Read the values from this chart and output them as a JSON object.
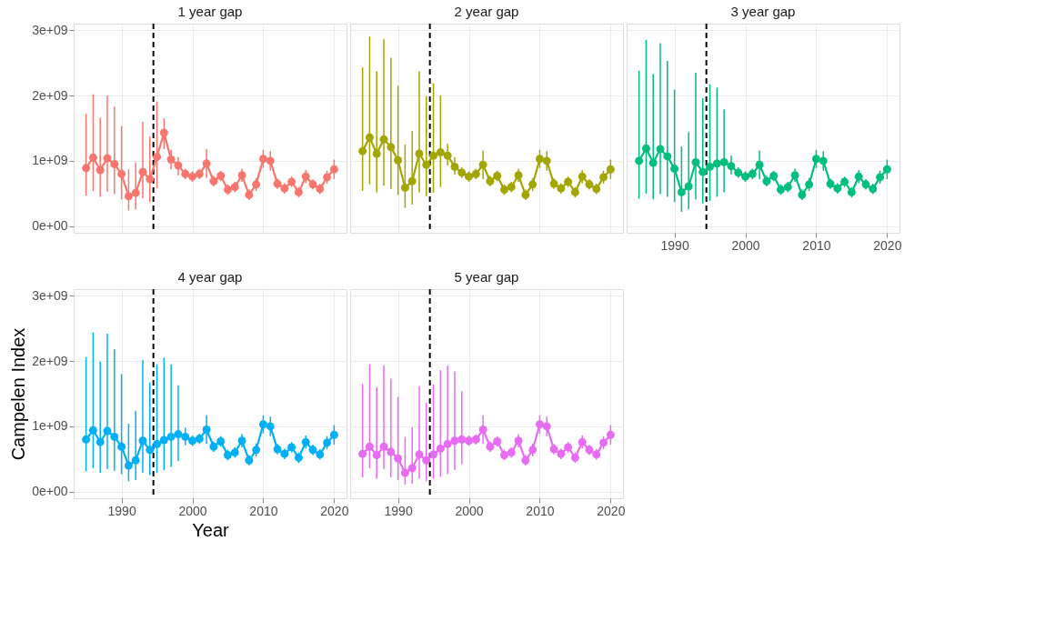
{
  "chart_data": [
    {
      "type": "line",
      "title": "1 year gap",
      "x": [
        1985,
        1986,
        1987,
        1988,
        1989,
        1990,
        1991,
        1992,
        1993,
        1994,
        1995,
        1996,
        1997,
        1998,
        1999,
        2000,
        2001,
        2002,
        2003,
        2004,
        2005,
        2006,
        2007,
        2008,
        2009,
        2010,
        2011,
        2012,
        2013,
        2014,
        2015,
        2016,
        2017,
        2018,
        2019,
        2020
      ],
      "xlim": [
        1983.25,
        2021.75
      ],
      "xticks": [
        1990,
        2000,
        2010,
        2020
      ],
      "ylim": [
        -100000000.0,
        3100000000.0
      ],
      "yticks": [
        {
          "value": 0,
          "label": "0e+00"
        },
        {
          "value": 1000000000.0,
          "label": "1e+09"
        },
        {
          "value": 2000000000.0,
          "label": "2e+09"
        },
        {
          "value": 3000000000.0,
          "label": "3e+09"
        }
      ],
      "tick_labels": "y",
      "grid": true,
      "legend": false,
      "marker": "circle",
      "line_style": "solid",
      "ref_lines": [
        {
          "axis": "x",
          "value": 1994.5,
          "color": "#000000",
          "line_style": "dashed"
        }
      ],
      "series": [
        {
          "color": "#f8766d",
          "values": [
            890000000.0,
            1050000000.0,
            860000000.0,
            1040000000.0,
            950000000.0,
            800000000.0,
            460000000.0,
            510000000.0,
            830000000.0,
            720000000.0,
            1060000000.0,
            1430000000.0,
            1020000000.0,
            930000000.0,
            800000000.0,
            760000000.0,
            800000000.0,
            960000000.0,
            690000000.0,
            770000000.0,
            560000000.0,
            600000000.0,
            780000000.0,
            480000000.0,
            640000000.0,
            1030000000.0,
            1000000000.0,
            650000000.0,
            580000000.0,
            680000000.0,
            520000000.0,
            760000000.0,
            640000000.0,
            570000000.0,
            750000000.0,
            870000000.0
          ],
          "errors": [
            [
              470000000.0,
              1720000000.0
            ],
            [
              540000000.0,
              2020000000.0
            ],
            [
              450000000.0,
              1660000000.0
            ],
            [
              530000000.0,
              2000000000.0
            ],
            [
              490000000.0,
              1830000000.0
            ],
            [
              410000000.0,
              1530000000.0
            ],
            [
              240000000.0,
              870000000.0
            ],
            [
              260000000.0,
              980000000.0
            ],
            [
              430000000.0,
              1600000000.0
            ],
            [
              370000000.0,
              1370000000.0
            ],
            [
              580000000.0,
              1910000000.0
            ],
            [
              1180000000.0,
              1650000000.0
            ],
            [
              870000000.0,
              1170000000.0
            ],
            [
              780000000.0,
              1060000000.0
            ],
            80000000.0,
            80000000.0,
            80000000.0,
            220000000.0,
            80000000.0,
            80000000.0,
            80000000.0,
            80000000.0,
            100000000.0,
            80000000.0,
            100000000.0,
            140000000.0,
            150000000.0,
            80000000.0,
            80000000.0,
            80000000.0,
            80000000.0,
            100000000.0,
            80000000.0,
            80000000.0,
            100000000.0,
            150000000.0
          ]
        }
      ]
    },
    {
      "type": "line",
      "title": "2 year gap",
      "x": [
        1985,
        1986,
        1987,
        1988,
        1989,
        1990,
        1991,
        1992,
        1993,
        1994,
        1995,
        1996,
        1997,
        1998,
        1999,
        2000,
        2001,
        2002,
        2003,
        2004,
        2005,
        2006,
        2007,
        2008,
        2009,
        2010,
        2011,
        2012,
        2013,
        2014,
        2015,
        2016,
        2017,
        2018,
        2019,
        2020
      ],
      "xlim": [
        1983.25,
        2021.75
      ],
      "xticks": [
        1990,
        2000,
        2010,
        2020
      ],
      "ylim": [
        -100000000.0,
        3100000000.0
      ],
      "yticks": [
        0,
        1000000000.0,
        2000000000.0,
        3000000000.0
      ],
      "tick_labels": false,
      "grid": true,
      "legend": false,
      "marker": "circle",
      "line_style": "solid",
      "ref_lines": [
        {
          "axis": "x",
          "value": 1994.5,
          "color": "#000000",
          "line_style": "dashed"
        }
      ],
      "series": [
        {
          "color": "#a3a500",
          "values": [
            1150000000.0,
            1360000000.0,
            1110000000.0,
            1330000000.0,
            1210000000.0,
            1010000000.0,
            590000000.0,
            690000000.0,
            1110000000.0,
            940000000.0,
            1080000000.0,
            1130000000.0,
            1080000000.0,
            910000000.0,
            820000000.0,
            760000000.0,
            800000000.0,
            940000000.0,
            690000000.0,
            770000000.0,
            560000000.0,
            600000000.0,
            780000000.0,
            480000000.0,
            640000000.0,
            1030000000.0,
            1000000000.0,
            650000000.0,
            580000000.0,
            680000000.0,
            520000000.0,
            760000000.0,
            640000000.0,
            570000000.0,
            750000000.0,
            870000000.0
          ],
          "errors": [
            [
              540000000.0,
              2430000000.0
            ],
            [
              640000000.0,
              2900000000.0
            ],
            [
              520000000.0,
              2370000000.0
            ],
            [
              620000000.0,
              2860000000.0
            ],
            [
              570000000.0,
              2580000000.0
            ],
            [
              480000000.0,
              2150000000.0
            ],
            [
              280000000.0,
              1250000000.0
            ],
            [
              330000000.0,
              1460000000.0
            ],
            [
              520000000.0,
              2370000000.0
            ],
            [
              460000000.0,
              1990000000.0
            ],
            [
              510000000.0,
              2190000000.0
            ],
            [
              600000000.0,
              2000000000.0
            ],
            [
              930000000.0,
              1260000000.0
            ],
            [
              790000000.0,
              1060000000.0
            ],
            80000000.0,
            80000000.0,
            80000000.0,
            220000000.0,
            80000000.0,
            80000000.0,
            80000000.0,
            80000000.0,
            100000000.0,
            80000000.0,
            100000000.0,
            140000000.0,
            150000000.0,
            80000000.0,
            80000000.0,
            80000000.0,
            80000000.0,
            100000000.0,
            80000000.0,
            80000000.0,
            100000000.0,
            150000000.0
          ]
        }
      ]
    },
    {
      "type": "line",
      "title": "3 year gap",
      "x": [
        1985,
        1986,
        1987,
        1988,
        1989,
        1990,
        1991,
        1992,
        1993,
        1994,
        1995,
        1996,
        1997,
        1998,
        1999,
        2000,
        2001,
        2002,
        2003,
        2004,
        2005,
        2006,
        2007,
        2008,
        2009,
        2010,
        2011,
        2012,
        2013,
        2014,
        2015,
        2016,
        2017,
        2018,
        2019,
        2020
      ],
      "xlim": [
        1983.25,
        2021.75
      ],
      "xticks": [
        1990,
        2000,
        2010,
        2020
      ],
      "ylim": [
        -100000000.0,
        3100000000.0
      ],
      "yticks": [
        0,
        1000000000.0,
        2000000000.0,
        3000000000.0
      ],
      "tick_labels": "x",
      "grid": true,
      "legend": false,
      "marker": "circle",
      "line_style": "solid",
      "ref_lines": [
        {
          "axis": "x",
          "value": 1994.5,
          "color": "#000000",
          "line_style": "dashed"
        }
      ],
      "series": [
        {
          "color": "#00bf7d",
          "values": [
            1000000000.0,
            1190000000.0,
            970000000.0,
            1180000000.0,
            1070000000.0,
            880000000.0,
            520000000.0,
            610000000.0,
            980000000.0,
            830000000.0,
            910000000.0,
            960000000.0,
            980000000.0,
            920000000.0,
            820000000.0,
            760000000.0,
            800000000.0,
            940000000.0,
            690000000.0,
            770000000.0,
            560000000.0,
            600000000.0,
            780000000.0,
            480000000.0,
            640000000.0,
            1030000000.0,
            1000000000.0,
            650000000.0,
            580000000.0,
            680000000.0,
            520000000.0,
            760000000.0,
            640000000.0,
            570000000.0,
            750000000.0,
            870000000.0
          ],
          "errors": [
            [
              420000000.0,
              2380000000.0
            ],
            [
              500000000.0,
              2850000000.0
            ],
            [
              410000000.0,
              2330000000.0
            ],
            [
              490000000.0,
              2800000000.0
            ],
            [
              450000000.0,
              2530000000.0
            ],
            [
              370000000.0,
              2090000000.0
            ],
            [
              220000000.0,
              1220000000.0
            ],
            [
              260000000.0,
              1440000000.0
            ],
            [
              410000000.0,
              2350000000.0
            ],
            [
              350000000.0,
              1960000000.0
            ],
            [
              390000000.0,
              2170000000.0
            ],
            [
              450000000.0,
              2120000000.0
            ],
            [
              520000000.0,
              1790000000.0
            ],
            [
              790000000.0,
              1080000000.0
            ],
            80000000.0,
            80000000.0,
            80000000.0,
            220000000.0,
            80000000.0,
            80000000.0,
            80000000.0,
            80000000.0,
            100000000.0,
            80000000.0,
            100000000.0,
            140000000.0,
            150000000.0,
            80000000.0,
            80000000.0,
            80000000.0,
            80000000.0,
            100000000.0,
            80000000.0,
            80000000.0,
            100000000.0,
            150000000.0
          ]
        }
      ]
    },
    {
      "type": "line",
      "title": "4 year gap",
      "xlabel": "Year",
      "ylabel": "Campelen Index",
      "x": [
        1985,
        1986,
        1987,
        1988,
        1989,
        1990,
        1991,
        1992,
        1993,
        1994,
        1995,
        1996,
        1997,
        1998,
        1999,
        2000,
        2001,
        2002,
        2003,
        2004,
        2005,
        2006,
        2007,
        2008,
        2009,
        2010,
        2011,
        2012,
        2013,
        2014,
        2015,
        2016,
        2017,
        2018,
        2019,
        2020
      ],
      "xlim": [
        1983.25,
        2021.75
      ],
      "xticks": [
        1990,
        2000,
        2010,
        2020
      ],
      "ylim": [
        -100000000.0,
        3100000000.0
      ],
      "yticks": [
        {
          "value": 0,
          "label": "0e+00"
        },
        {
          "value": 1000000000.0,
          "label": "1e+09"
        },
        {
          "value": 2000000000.0,
          "label": "2e+09"
        },
        {
          "value": 3000000000.0,
          "label": "3e+09"
        }
      ],
      "grid": true,
      "legend": false,
      "marker": "circle",
      "line_style": "solid",
      "ref_lines": [
        {
          "axis": "x",
          "value": 1994.5,
          "color": "#000000",
          "line_style": "dashed"
        }
      ],
      "series": [
        {
          "color": "#00b0f6",
          "values": [
            800000000.0,
            940000000.0,
            760000000.0,
            930000000.0,
            840000000.0,
            690000000.0,
            400000000.0,
            480000000.0,
            780000000.0,
            640000000.0,
            730000000.0,
            790000000.0,
            840000000.0,
            880000000.0,
            840000000.0,
            780000000.0,
            810000000.0,
            950000000.0,
            690000000.0,
            770000000.0,
            560000000.0,
            600000000.0,
            780000000.0,
            480000000.0,
            640000000.0,
            1030000000.0,
            1000000000.0,
            650000000.0,
            580000000.0,
            680000000.0,
            520000000.0,
            760000000.0,
            640000000.0,
            570000000.0,
            750000000.0,
            870000000.0
          ],
          "errors": [
            [
              310000000.0,
              2060000000.0
            ],
            [
              360000000.0,
              2440000000.0
            ],
            [
              290000000.0,
              1990000000.0
            ],
            [
              350000000.0,
              2420000000.0
            ],
            [
              320000000.0,
              2180000000.0
            ],
            [
              270000000.0,
              1800000000.0
            ],
            [
              160000000.0,
              1040000000.0
            ],
            [
              180000000.0,
              1240000000.0
            ],
            [
              290000000.0,
              2020000000.0
            ],
            [
              250000000.0,
              1670000000.0
            ],
            [
              290000000.0,
              1950000000.0
            ],
            [
              330000000.0,
              2050000000.0
            ],
            [
              380000000.0,
              1950000000.0
            ],
            [
              470000000.0,
              1630000000.0
            ],
            [
              710000000.0,
              980000000.0
            ],
            80000000.0,
            80000000.0,
            220000000.0,
            80000000.0,
            80000000.0,
            80000000.0,
            80000000.0,
            100000000.0,
            80000000.0,
            100000000.0,
            140000000.0,
            150000000.0,
            80000000.0,
            80000000.0,
            80000000.0,
            80000000.0,
            100000000.0,
            80000000.0,
            80000000.0,
            100000000.0,
            150000000.0
          ]
        }
      ]
    },
    {
      "type": "line",
      "title": "5 year gap",
      "x": [
        1985,
        1986,
        1987,
        1988,
        1989,
        1990,
        1991,
        1992,
        1993,
        1994,
        1995,
        1996,
        1997,
        1998,
        1999,
        2000,
        2001,
        2002,
        2003,
        2004,
        2005,
        2006,
        2007,
        2008,
        2009,
        2010,
        2011,
        2012,
        2013,
        2014,
        2015,
        2016,
        2017,
        2018,
        2019,
        2020
      ],
      "xlim": [
        1983.25,
        2021.75
      ],
      "xticks": [
        1990,
        2000,
        2010,
        2020
      ],
      "ylim": [
        -100000000.0,
        3100000000.0
      ],
      "yticks": [
        0,
        1000000000.0,
        2000000000.0,
        3000000000.0
      ],
      "tick_labels": "x",
      "grid": true,
      "legend": false,
      "marker": "circle",
      "line_style": "solid",
      "ref_lines": [
        {
          "axis": "x",
          "value": 1994.5,
          "color": "#000000",
          "line_style": "dashed"
        }
      ],
      "series": [
        {
          "color": "#e76bf3",
          "values": [
            580000000.0,
            690000000.0,
            560000000.0,
            690000000.0,
            610000000.0,
            510000000.0,
            290000000.0,
            360000000.0,
            570000000.0,
            480000000.0,
            570000000.0,
            660000000.0,
            730000000.0,
            780000000.0,
            800000000.0,
            780000000.0,
            800000000.0,
            950000000.0,
            690000000.0,
            770000000.0,
            560000000.0,
            600000000.0,
            780000000.0,
            480000000.0,
            640000000.0,
            1030000000.0,
            1000000000.0,
            650000000.0,
            580000000.0,
            680000000.0,
            520000000.0,
            760000000.0,
            640000000.0,
            570000000.0,
            750000000.0,
            870000000.0
          ],
          "errors": [
            [
              220000000.0,
              1650000000.0
            ],
            [
              360000000.0,
              1950000000.0
            ],
            [
              200000000.0,
              1600000000.0
            ],
            [
              350000000.0,
              1940000000.0
            ],
            [
              220000000.0,
              1730000000.0
            ],
            [
              180000000.0,
              1450000000.0
            ],
            [
              110000000.0,
              840000000.0
            ],
            [
              120000000.0,
              990000000.0
            ],
            [
              200000000.0,
              1620000000.0
            ],
            [
              160000000.0,
              1360000000.0
            ],
            [
              200000000.0,
              1640000000.0
            ],
            [
              230000000.0,
              1860000000.0
            ],
            [
              270000000.0,
              1930000000.0
            ],
            [
              330000000.0,
              1840000000.0
            ],
            [
              420000000.0,
              1540000000.0
            ],
            80000000.0,
            80000000.0,
            220000000.0,
            80000000.0,
            80000000.0,
            80000000.0,
            80000000.0,
            100000000.0,
            80000000.0,
            100000000.0,
            140000000.0,
            150000000.0,
            80000000.0,
            80000000.0,
            80000000.0,
            80000000.0,
            100000000.0,
            80000000.0,
            80000000.0,
            100000000.0,
            150000000.0
          ]
        }
      ]
    }
  ]
}
